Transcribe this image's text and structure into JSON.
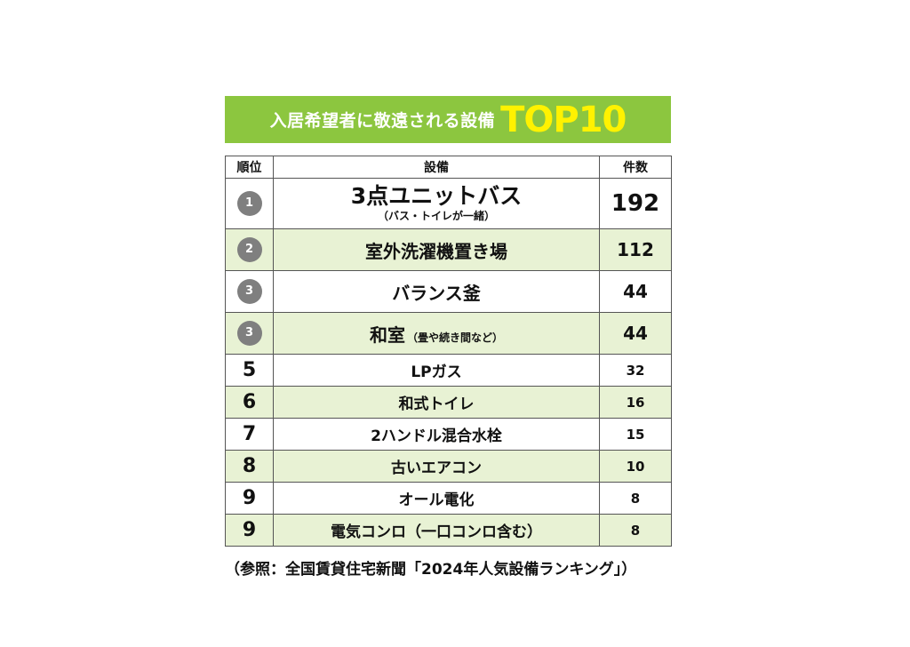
{
  "banner": {
    "title": "入居希望者に敬遠される設備",
    "top_label": "TOP10"
  },
  "table": {
    "headers": {
      "rank": "順位",
      "item": "設備",
      "count": "件数"
    },
    "rows": [
      {
        "rank": "1",
        "name": "3点ユニットバス",
        "note": "（バス・トイレが一緒）",
        "count": "192"
      },
      {
        "rank": "2",
        "name": "室外洗濯機置き場",
        "note": "",
        "count": "112"
      },
      {
        "rank": "3",
        "name": "バランス釜",
        "note": "",
        "count": "44"
      },
      {
        "rank": "3",
        "name": "和室",
        "note": "（畳や続き間など）",
        "count": "44"
      },
      {
        "rank": "5",
        "name": "LPガス",
        "note": "",
        "count": "32"
      },
      {
        "rank": "6",
        "name": "和式トイレ",
        "note": "",
        "count": "16"
      },
      {
        "rank": "7",
        "name": "2ハンドル混合水栓",
        "note": "",
        "count": "15"
      },
      {
        "rank": "8",
        "name": "古いエアコン",
        "note": "",
        "count": "10"
      },
      {
        "rank": "9",
        "name": "オール電化",
        "note": "",
        "count": "8"
      },
      {
        "rank": "9",
        "name": "電気コンロ（一口コンロ含む）",
        "note": "",
        "count": "8"
      }
    ]
  },
  "caption": "（参照：全国賃貸住宅新聞「2024年人気設備ランキング」）",
  "colors": {
    "banner_bg": "#8cc63f",
    "banner_accent": "#fff200",
    "row_alt": "#e8f2d4",
    "badge": "#7f7f7f"
  }
}
